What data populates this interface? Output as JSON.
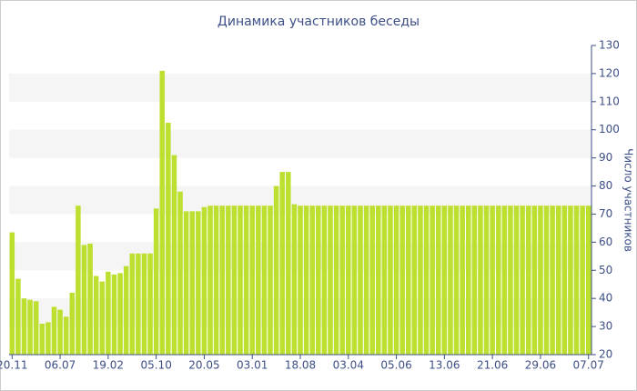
{
  "chart_data": {
    "type": "bar",
    "title": "Динамика участников беседы",
    "y_axis_label": "Число участников",
    "categories": [
      "20.11",
      null,
      null,
      null,
      null,
      null,
      null,
      null,
      "06.07",
      null,
      null,
      null,
      null,
      null,
      null,
      null,
      "19.02",
      null,
      null,
      null,
      null,
      null,
      null,
      null,
      "05.10",
      null,
      null,
      null,
      null,
      null,
      null,
      null,
      "20.05",
      null,
      null,
      null,
      null,
      null,
      null,
      null,
      "03.01",
      null,
      null,
      null,
      null,
      null,
      null,
      null,
      "18.08",
      null,
      null,
      null,
      null,
      null,
      null,
      null,
      "03.04",
      null,
      null,
      null,
      null,
      null,
      null,
      null,
      "05.06",
      null,
      null,
      null,
      null,
      null,
      null,
      null,
      "13.06",
      null,
      null,
      null,
      null,
      null,
      null,
      null,
      "21.06",
      null,
      null,
      null,
      null,
      null,
      null,
      null,
      "29.06",
      null,
      null,
      null,
      null,
      null,
      null,
      null,
      "07.07"
    ],
    "values": [
      63.5,
      47,
      40,
      39.5,
      39,
      31,
      31.5,
      37,
      36,
      33.5,
      42,
      73,
      59,
      59.5,
      48,
      46,
      49.5,
      48.5,
      49,
      51.5,
      56,
      56,
      56,
      56,
      72,
      121,
      102.5,
      91,
      78,
      71,
      71,
      71,
      72.5,
      73,
      73,
      73,
      73,
      73,
      73,
      73,
      73,
      73,
      73,
      73,
      80,
      85,
      85,
      73.5,
      73,
      73,
      73,
      73,
      73,
      73,
      73,
      73,
      73,
      73,
      73,
      73,
      73,
      73,
      73,
      73,
      73,
      73,
      73,
      73,
      73,
      73,
      73,
      73,
      73,
      73,
      73,
      73,
      73,
      73,
      73,
      73,
      73,
      73,
      73,
      73,
      73,
      73,
      73,
      73,
      73,
      73,
      73,
      73,
      73,
      73,
      73,
      73,
      73
    ],
    "color": "#bde030",
    "ylim": [
      20,
      130
    ],
    "yticks": [
      20,
      30,
      40,
      50,
      60,
      70,
      80,
      90,
      100,
      110,
      120,
      130
    ],
    "y_axis_side": "right",
    "bands": true
  }
}
